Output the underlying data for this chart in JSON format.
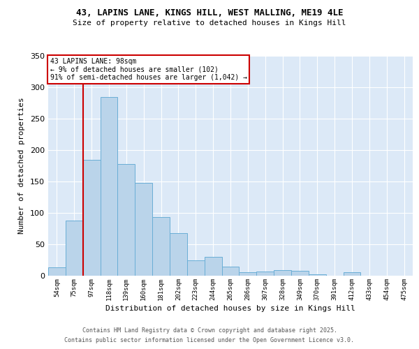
{
  "title1": "43, LAPINS LANE, KINGS HILL, WEST MALLING, ME19 4LE",
  "title2": "Size of property relative to detached houses in Kings Hill",
  "xlabel": "Distribution of detached houses by size in Kings Hill",
  "ylabel": "Number of detached properties",
  "bar_color": "#bad4ea",
  "bar_edge_color": "#6aaed6",
  "background_color": "#dce9f7",
  "grid_color": "#ffffff",
  "red_line_color": "#cc0000",
  "annotation_title": "43 LAPINS LANE: 98sqm",
  "annotation_line1": "← 9% of detached houses are smaller (102)",
  "annotation_line2": "91% of semi-detached houses are larger (1,042) →",
  "categories": [
    "54sqm",
    "75sqm",
    "97sqm",
    "118sqm",
    "139sqm",
    "160sqm",
    "181sqm",
    "202sqm",
    "223sqm",
    "244sqm",
    "265sqm",
    "286sqm",
    "307sqm",
    "328sqm",
    "349sqm",
    "370sqm",
    "391sqm",
    "412sqm",
    "433sqm",
    "454sqm",
    "475sqm"
  ],
  "values": [
    13,
    88,
    185,
    285,
    178,
    148,
    93,
    68,
    25,
    30,
    14,
    6,
    7,
    9,
    8,
    2,
    0,
    6,
    0,
    0,
    0
  ],
  "ylim": [
    0,
    350
  ],
  "yticks": [
    0,
    50,
    100,
    150,
    200,
    250,
    300,
    350
  ],
  "red_line_index": 2,
  "footer_line1": "Contains HM Land Registry data © Crown copyright and database right 2025.",
  "footer_line2": "Contains public sector information licensed under the Open Government Licence v3.0."
}
